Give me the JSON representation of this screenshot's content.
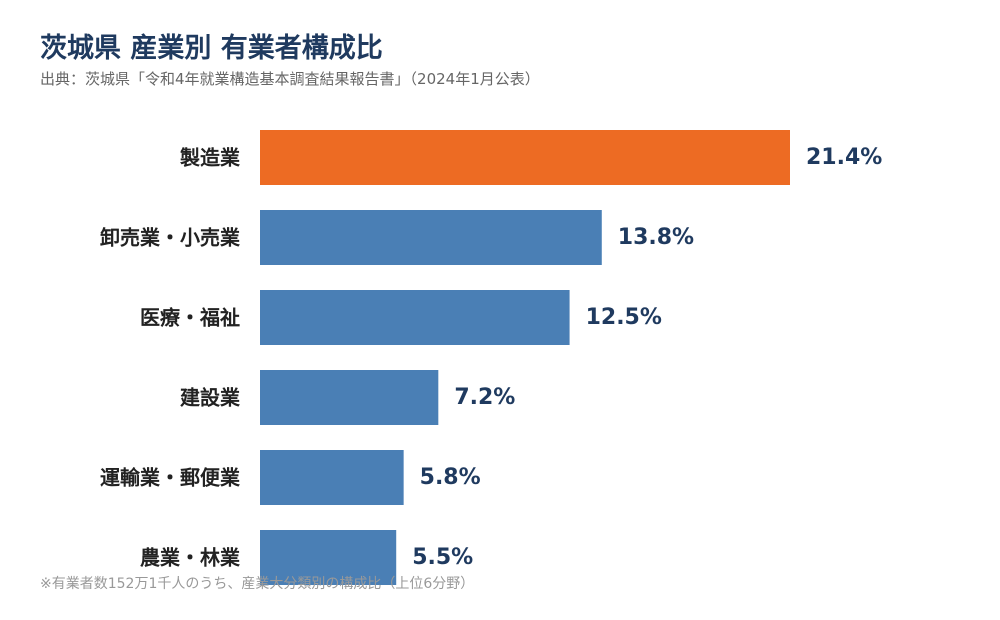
{
  "chart_data": {
    "type": "bar",
    "orientation": "horizontal",
    "title": "茨城県 産業別 有業者構成比",
    "subtitle": "出典：茨城県「令和4年就業構造基本調査結果報告書」（2024年1月公表）",
    "categories": [
      "製造業",
      "卸売業・小売業",
      "医療・福祉",
      "建設業",
      "運輸業・郵便業",
      "農業・林業"
    ],
    "values": [
      21.4,
      13.8,
      12.5,
      7.2,
      5.8,
      5.5
    ],
    "value_labels": [
      "21.4%",
      "13.8%",
      "12.5%",
      "7.2%",
      "5.8%",
      "5.5%"
    ],
    "unit": "%",
    "xlim": [
      0,
      24
    ],
    "grid": false,
    "highlight_index": 0,
    "colors": {
      "highlight": "#ED6B23",
      "default": "#4A7FB5"
    },
    "note": "※有業者数152万1千人のうち、産業大分類別の構成比（上位6分野）"
  }
}
